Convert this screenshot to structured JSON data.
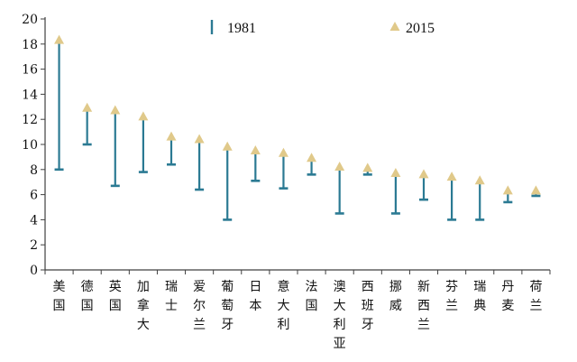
{
  "chart_data": {
    "type": "scatter",
    "categories": [
      "美国",
      "德国",
      "英国",
      "加拿大",
      "瑞士",
      "爱尔兰",
      "葡萄牙",
      "日本",
      "意大利",
      "法国",
      "澳大利亚",
      "西班牙",
      "挪威",
      "新西兰",
      "芬兰",
      "瑞典",
      "丹麦",
      "荷兰"
    ],
    "series": [
      {
        "name": "1981",
        "values": [
          8.0,
          10.0,
          6.7,
          7.8,
          8.4,
          6.4,
          4.0,
          7.1,
          6.5,
          7.6,
          4.5,
          7.6,
          4.5,
          5.6,
          4.0,
          4.0,
          5.4,
          5.9
        ]
      },
      {
        "name": "2015",
        "values": [
          18.3,
          12.9,
          12.7,
          12.2,
          10.6,
          10.4,
          9.8,
          9.5,
          9.3,
          8.9,
          8.2,
          8.1,
          7.7,
          7.6,
          7.4,
          7.1,
          6.3,
          6.3
        ]
      }
    ],
    "ylim": [
      0,
      20
    ],
    "yticks": [
      "0",
      "2",
      "4",
      "6",
      "8",
      "10",
      "12",
      "14",
      "16",
      "18",
      "20"
    ],
    "legend_position": "top",
    "colors": {
      "series_1981": "#2b7a93",
      "series_2015": "#e0c98a",
      "axis": "#404040"
    }
  }
}
